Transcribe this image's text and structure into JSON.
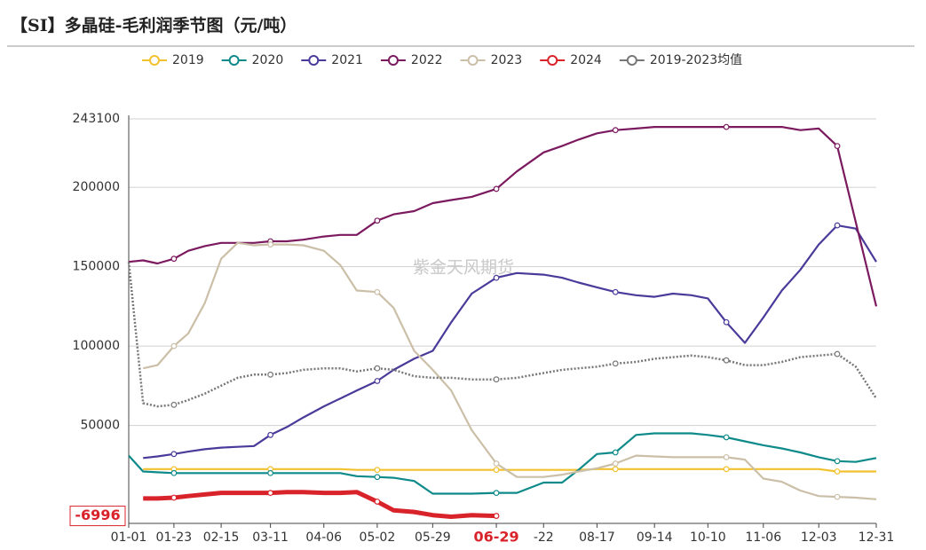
{
  "chart_data": {
    "type": "line",
    "title": "【SI】多晶硅-毛利润季节图（元/吨）",
    "watermark": "紫金天风期货",
    "x": [
      1,
      8,
      15,
      23,
      30,
      38,
      46,
      54,
      62,
      70,
      78,
      86,
      96,
      104,
      112,
      122,
      130,
      140,
      149,
      158,
      168,
      180,
      190,
      203,
      212,
      220,
      229,
      238,
      248,
      257,
      266,
      275,
      283,
      292,
      301,
      310,
      319,
      328,
      337,
      346,
      355,
      365
    ],
    "xlim": [
      1,
      365
    ],
    "xticks": [
      {
        "value": 1,
        "label": "01-01"
      },
      {
        "value": 23,
        "label": "01-23"
      },
      {
        "value": 46,
        "label": "02-15"
      },
      {
        "value": 70,
        "label": "03-11"
      },
      {
        "value": 96,
        "label": "04-06"
      },
      {
        "value": 122,
        "label": "05-02"
      },
      {
        "value": 149,
        "label": "05-29"
      },
      {
        "value": 180,
        "label": "06-29"
      },
      {
        "value": 203,
        "label": "-22"
      },
      {
        "value": 229,
        "label": "08-17"
      },
      {
        "value": 257,
        "label": "09-14"
      },
      {
        "value": 283,
        "label": "10-10"
      },
      {
        "value": 310,
        "label": "11-06"
      },
      {
        "value": 337,
        "label": "12-03"
      },
      {
        "value": 365,
        "label": "12-31"
      }
    ],
    "highlight_xtick": 7,
    "ylim": [
      -11700,
      243100
    ],
    "yticks": [
      50000,
      100000,
      150000,
      200000,
      243100
    ],
    "highlight_value": -6996,
    "grid": true,
    "series": [
      {
        "name": "2019",
        "color": "#f2c12e",
        "values": [
          null,
          22500,
          22500,
          22500,
          22500,
          22500,
          22500,
          22500,
          22500,
          22500,
          22500,
          22500,
          22500,
          22500,
          22000,
          22000,
          22000,
          22000,
          22000,
          22000,
          22000,
          22000,
          22000,
          22000,
          22000,
          22000,
          22500,
          22500,
          22500,
          22500,
          22500,
          22500,
          22500,
          22500,
          22500,
          22500,
          22500,
          22500,
          22500,
          21000,
          21000,
          21000
        ]
      },
      {
        "name": "2020",
        "color": "#0f8a8a",
        "values": [
          31000,
          21000,
          20500,
          20000,
          20000,
          20000,
          20000,
          20000,
          20000,
          20000,
          20000,
          20000,
          20000,
          20000,
          18000,
          17500,
          17000,
          15000,
          7000,
          7000,
          7000,
          7500,
          7500,
          14000,
          14000,
          22000,
          32000,
          33000,
          44000,
          45000,
          45000,
          45000,
          44000,
          42500,
          40000,
          37500,
          35500,
          33000,
          30000,
          27500,
          27000,
          29500
        ]
      },
      {
        "name": "2021",
        "color": "#4b3a9a",
        "values": [
          null,
          29500,
          30500,
          32000,
          33500,
          35000,
          36000,
          36500,
          37000,
          44000,
          49000,
          55000,
          62000,
          67000,
          72000,
          78000,
          85000,
          92000,
          97000,
          115000,
          133000,
          143000,
          146000,
          145000,
          143000,
          140000,
          137000,
          134000,
          132000,
          131000,
          133000,
          132000,
          130000,
          115000,
          102000,
          118000,
          135000,
          148000,
          164000,
          176000,
          174000,
          153000
        ]
      },
      {
        "name": "2022",
        "color": "#7b1a5f",
        "values": [
          153000,
          154000,
          152000,
          155000,
          160000,
          163000,
          165000,
          165000,
          165000,
          166000,
          166000,
          167000,
          169000,
          170000,
          170000,
          179000,
          183000,
          185000,
          190000,
          192000,
          194000,
          199000,
          210000,
          222000,
          226000,
          230000,
          234000,
          236000,
          237000,
          238000,
          238000,
          238000,
          238000,
          238000,
          238000,
          238000,
          238000,
          236000,
          237000,
          226000,
          178000,
          125000
        ]
      },
      {
        "name": "2023",
        "color": "#cbbfa8",
        "values": [
          null,
          86000,
          88000,
          100000,
          108000,
          127000,
          155000,
          165000,
          163500,
          164000,
          164000,
          163500,
          160000,
          151000,
          135000,
          134000,
          124000,
          97000,
          85000,
          72000,
          47000,
          26000,
          17500,
          17500,
          19000,
          21000,
          23000,
          26000,
          31000,
          30500,
          30000,
          30000,
          30000,
          30000,
          28500,
          16500,
          14500,
          9000,
          5500,
          5000,
          4500,
          3500
        ]
      },
      {
        "name": "2024",
        "color": "#d9232b",
        "values": [
          null,
          4000,
          4000,
          4500,
          5500,
          6500,
          7500,
          7500,
          7500,
          7500,
          8000,
          8000,
          7500,
          7500,
          8000,
          2000,
          -3500,
          -4500,
          -6500,
          -7500,
          -6500,
          -6996,
          null,
          null,
          null,
          null,
          null,
          null,
          null,
          null,
          null,
          null,
          null,
          null,
          null,
          null,
          null,
          null,
          null,
          null,
          null,
          null
        ]
      },
      {
        "name": "2019-2023均值",
        "color": "#777777",
        "dashed": true,
        "values": [
          153000,
          64000,
          62000,
          63000,
          66000,
          70000,
          75000,
          80000,
          82000,
          82000,
          83000,
          85000,
          86000,
          86000,
          84000,
          86000,
          85000,
          81000,
          80000,
          80000,
          79000,
          79000,
          80000,
          83000,
          85000,
          86000,
          87000,
          89000,
          90000,
          92000,
          93000,
          94000,
          93000,
          91000,
          88000,
          88000,
          90000,
          93000,
          94000,
          95000,
          87000,
          67000
        ]
      }
    ]
  }
}
